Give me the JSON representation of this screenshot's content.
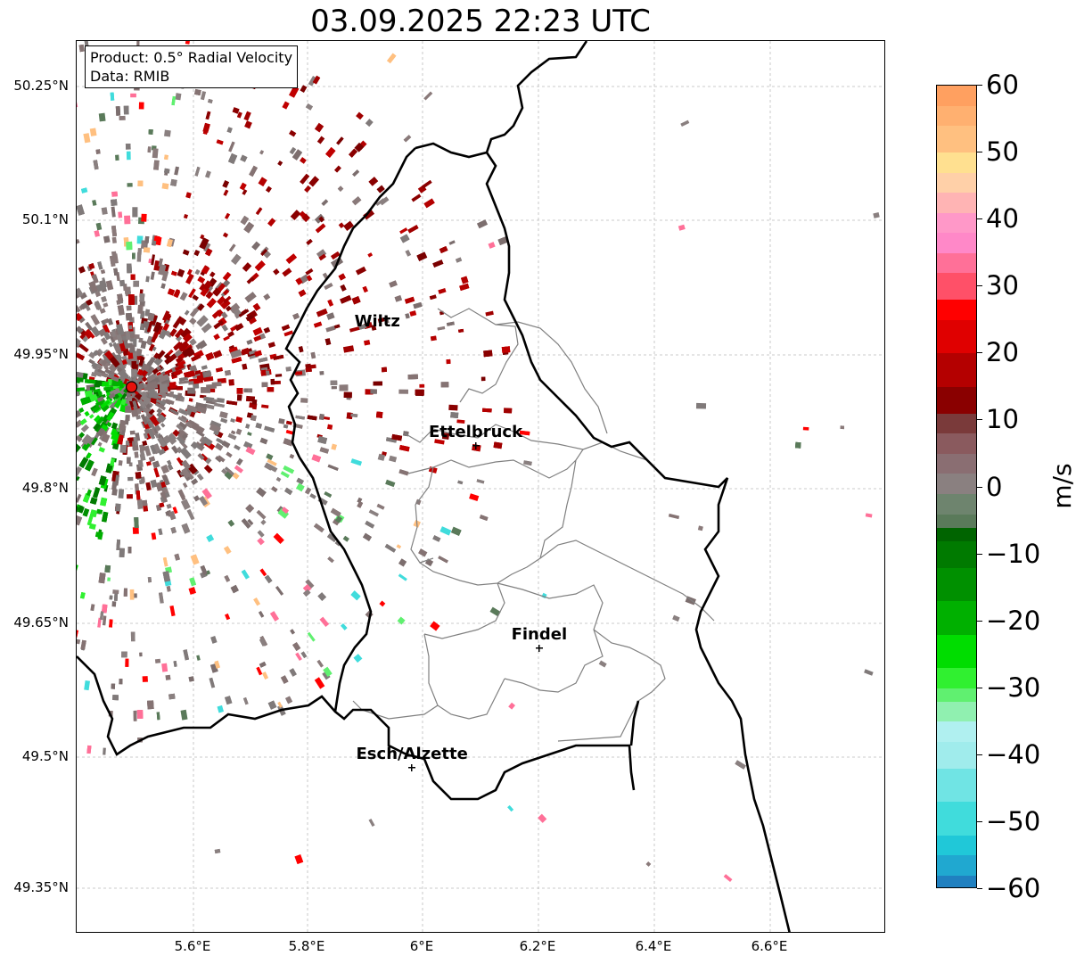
{
  "title": "03.09.2025 22:23 UTC",
  "info": {
    "product": "Product: 0.5° Radial Velocity",
    "source": "Data: RMIB"
  },
  "map": {
    "lon_range": [
      5.41,
      6.81
    ],
    "lat_range": [
      49.32,
      50.29
    ],
    "lat_ticks": [
      "50.25°N",
      "50.1°N",
      "49.95°N",
      "49.8°N",
      "49.65°N",
      "49.5°N",
      "49.35°N"
    ],
    "lon_ticks": [
      "5.6°E",
      "5.8°E",
      "6°E",
      "6.2°E",
      "6.4°E",
      "6.6°E"
    ],
    "radar_site": {
      "lon": 5.505,
      "lat": 49.914,
      "color": "#e8120c"
    },
    "cities": [
      {
        "name": "Wiltz",
        "lon": 5.93,
        "lat": 49.97,
        "marker": false
      },
      {
        "name": "Ettelbruck",
        "lon": 6.1,
        "lat": 49.85,
        "marker": true
      },
      {
        "name": "Findel",
        "lon": 6.21,
        "lat": 49.63,
        "marker": true
      },
      {
        "name": "Esch/Alzette",
        "lon": 5.99,
        "lat": 49.5,
        "marker": true
      }
    ]
  },
  "colorbar": {
    "unit": "m/s",
    "min": -60,
    "max": 60,
    "tick_values": [
      60,
      50,
      40,
      30,
      20,
      10,
      0,
      -10,
      -20,
      -30,
      -40,
      -50,
      -60
    ],
    "tick_labels": [
      "60",
      "50",
      "40",
      "30",
      "20",
      "10",
      "0",
      "−10",
      "−20",
      "−30",
      "−40",
      "−50",
      "−60"
    ],
    "bands": [
      {
        "from": 57,
        "to": 60,
        "color": "#ffa060"
      },
      {
        "from": 54,
        "to": 57,
        "color": "#ffb070"
      },
      {
        "from": 50,
        "to": 54,
        "color": "#ffc080"
      },
      {
        "from": 47,
        "to": 50,
        "color": "#ffe090"
      },
      {
        "from": 44,
        "to": 47,
        "color": "#ffd0a8"
      },
      {
        "from": 41,
        "to": 44,
        "color": "#ffb4b4"
      },
      {
        "from": 38,
        "to": 41,
        "color": "#ff98c8"
      },
      {
        "from": 35,
        "to": 38,
        "color": "#ff88c8"
      },
      {
        "from": 32,
        "to": 35,
        "color": "#ff7098"
      },
      {
        "from": 28,
        "to": 32,
        "color": "#ff5068"
      },
      {
        "from": 25,
        "to": 28,
        "color": "#ff0000"
      },
      {
        "from": 20,
        "to": 25,
        "color": "#e00000"
      },
      {
        "from": 15,
        "to": 20,
        "color": "#b40000"
      },
      {
        "from": 11,
        "to": 15,
        "color": "#8a0000"
      },
      {
        "from": 8,
        "to": 11,
        "color": "#7a3a3a"
      },
      {
        "from": 5,
        "to": 8,
        "color": "#8a5a5e"
      },
      {
        "from": 2,
        "to": 5,
        "color": "#8a6e72"
      },
      {
        "from": -1,
        "to": 2,
        "color": "#8a8080"
      },
      {
        "from": -4,
        "to": -1,
        "color": "#6e846e"
      },
      {
        "from": -6,
        "to": -4,
        "color": "#5a7a5a"
      },
      {
        "from": -8,
        "to": -6,
        "color": "#006400"
      },
      {
        "from": -12,
        "to": -8,
        "color": "#007a00"
      },
      {
        "from": -17,
        "to": -12,
        "color": "#009000"
      },
      {
        "from": -22,
        "to": -17,
        "color": "#00b000"
      },
      {
        "from": -27,
        "to": -22,
        "color": "#00dd00"
      },
      {
        "from": -30,
        "to": -27,
        "color": "#30f030"
      },
      {
        "from": -32,
        "to": -30,
        "color": "#60f070"
      },
      {
        "from": -35,
        "to": -32,
        "color": "#90f0b0"
      },
      {
        "from": -38,
        "to": -35,
        "color": "#b0f0f0"
      },
      {
        "from": -42,
        "to": -38,
        "color": "#a0ecec"
      },
      {
        "from": -47,
        "to": -42,
        "color": "#70e4e4"
      },
      {
        "from": -52,
        "to": -47,
        "color": "#40dcdc"
      },
      {
        "from": -55,
        "to": -52,
        "color": "#20c8d8"
      },
      {
        "from": -58,
        "to": -55,
        "color": "#20a8d0"
      },
      {
        "from": -60,
        "to": -58,
        "color": "#2080c0"
      }
    ]
  }
}
